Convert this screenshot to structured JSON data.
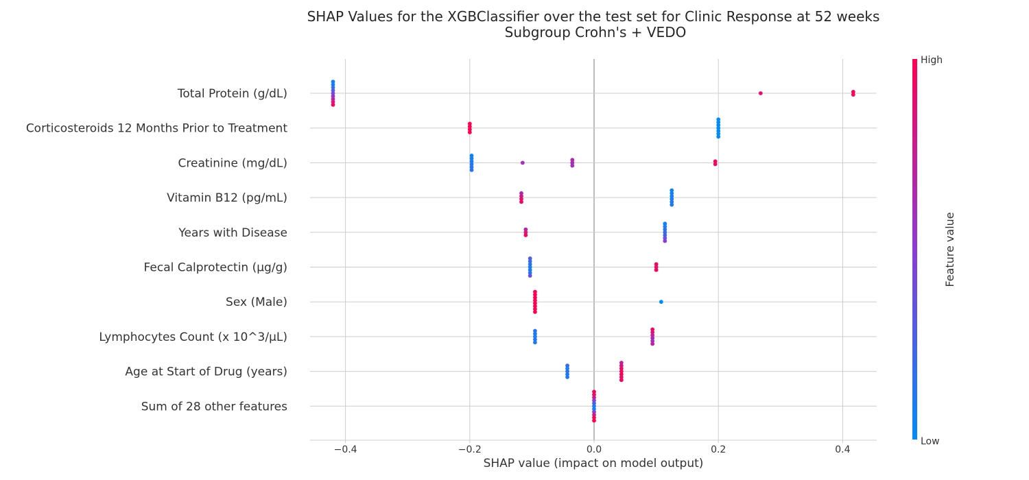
{
  "chart_data": {
    "type": "scatter",
    "title": "SHAP Values for the XGBClassifier over the test set for Clinic Response at 52 weeks",
    "subtitle": "Subgroup Crohn's + VEDO",
    "xlabel": "SHAP value (impact on model output)",
    "xlim": [
      -0.46,
      0.46
    ],
    "xticks": [
      -0.4,
      -0.2,
      0.0,
      0.2,
      0.4
    ],
    "xtick_labels": [
      "−0.4",
      "−0.2",
      "0.0",
      "0.2",
      "0.4"
    ],
    "grid": true,
    "colorbar": {
      "title": "Feature value",
      "high_label": "High",
      "low_label": "Low",
      "low_color": "#008bfb",
      "high_color": "#ff0052"
    },
    "features": [
      {
        "name": "Total Protein (g/dL)",
        "points": [
          {
            "x": -0.42,
            "v": 0.05
          },
          {
            "x": -0.42,
            "v": 0.1
          },
          {
            "x": -0.42,
            "v": 0.15
          },
          {
            "x": -0.42,
            "v": 0.3
          },
          {
            "x": -0.42,
            "v": 0.4
          },
          {
            "x": -0.42,
            "v": 0.55
          },
          {
            "x": -0.42,
            "v": 0.7
          },
          {
            "x": -0.42,
            "v": 0.85
          },
          {
            "x": -0.42,
            "v": 0.95
          },
          {
            "x": 0.268,
            "v": 0.9
          },
          {
            "x": 0.417,
            "v": 1.0
          },
          {
            "x": 0.417,
            "v": 0.95
          }
        ]
      },
      {
        "name": "Corticosteroids 12 Months Prior to Treatment",
        "points": [
          {
            "x": -0.2,
            "v": 1.0
          },
          {
            "x": -0.2,
            "v": 1.0
          },
          {
            "x": -0.2,
            "v": 1.0
          },
          {
            "x": -0.2,
            "v": 1.0
          },
          {
            "x": 0.2,
            "v": 0.0
          },
          {
            "x": 0.2,
            "v": 0.0
          },
          {
            "x": 0.2,
            "v": 0.0
          },
          {
            "x": 0.2,
            "v": 0.0
          },
          {
            "x": 0.2,
            "v": 0.0
          },
          {
            "x": 0.2,
            "v": 0.0
          },
          {
            "x": 0.2,
            "v": 0.0
          }
        ]
      },
      {
        "name": "Creatinine (mg/dL)",
        "points": [
          {
            "x": -0.197,
            "v": 0.05
          },
          {
            "x": -0.197,
            "v": 0.05
          },
          {
            "x": -0.197,
            "v": 0.1
          },
          {
            "x": -0.197,
            "v": 0.1
          },
          {
            "x": -0.197,
            "v": 0.15
          },
          {
            "x": -0.197,
            "v": 0.15
          },
          {
            "x": -0.115,
            "v": 0.6
          },
          {
            "x": -0.035,
            "v": 0.65
          },
          {
            "x": -0.035,
            "v": 0.62
          },
          {
            "x": -0.035,
            "v": 0.6
          },
          {
            "x": 0.195,
            "v": 0.95
          },
          {
            "x": 0.195,
            "v": 0.9
          }
        ]
      },
      {
        "name": "Vitamin B12 (pg/mL)",
        "points": [
          {
            "x": -0.117,
            "v": 0.65
          },
          {
            "x": -0.117,
            "v": 0.8
          },
          {
            "x": -0.117,
            "v": 0.9
          },
          {
            "x": -0.117,
            "v": 0.95
          },
          {
            "x": 0.125,
            "v": 0.05
          },
          {
            "x": 0.125,
            "v": 0.05
          },
          {
            "x": 0.125,
            "v": 0.08
          },
          {
            "x": 0.125,
            "v": 0.08
          },
          {
            "x": 0.125,
            "v": 0.1
          },
          {
            "x": 0.125,
            "v": 0.12
          }
        ]
      },
      {
        "name": "Years with Disease",
        "points": [
          {
            "x": -0.11,
            "v": 0.7
          },
          {
            "x": -0.11,
            "v": 0.85
          },
          {
            "x": -0.11,
            "v": 0.95
          },
          {
            "x": 0.114,
            "v": 0.05
          },
          {
            "x": 0.114,
            "v": 0.1
          },
          {
            "x": 0.114,
            "v": 0.15
          },
          {
            "x": 0.114,
            "v": 0.2
          },
          {
            "x": 0.114,
            "v": 0.25
          },
          {
            "x": 0.114,
            "v": 0.35
          },
          {
            "x": 0.114,
            "v": 0.5
          }
        ]
      },
      {
        "name": "Fecal Calprotectin (µg/g)",
        "points": [
          {
            "x": -0.103,
            "v": 0.3
          },
          {
            "x": -0.103,
            "v": 0.2
          },
          {
            "x": -0.103,
            "v": 0.15
          },
          {
            "x": -0.103,
            "v": 0.1
          },
          {
            "x": -0.103,
            "v": 0.1
          },
          {
            "x": -0.103,
            "v": 0.15
          },
          {
            "x": -0.103,
            "v": 0.35
          },
          {
            "x": 0.1,
            "v": 0.95
          },
          {
            "x": 0.1,
            "v": 0.9
          },
          {
            "x": 0.1,
            "v": 0.95
          }
        ]
      },
      {
        "name": "Sex (Male)",
        "points": [
          {
            "x": -0.095,
            "v": 1.0
          },
          {
            "x": -0.095,
            "v": 1.0
          },
          {
            "x": -0.095,
            "v": 1.0
          },
          {
            "x": -0.095,
            "v": 1.0
          },
          {
            "x": -0.095,
            "v": 1.0
          },
          {
            "x": -0.095,
            "v": 1.0
          },
          {
            "x": -0.095,
            "v": 1.0
          },
          {
            "x": -0.095,
            "v": 1.0
          },
          {
            "x": 0.108,
            "v": 0.0
          }
        ]
      },
      {
        "name": "Lymphocytes Count (x 10^3/µL)",
        "points": [
          {
            "x": -0.095,
            "v": 0.15
          },
          {
            "x": -0.095,
            "v": 0.1
          },
          {
            "x": -0.095,
            "v": 0.1
          },
          {
            "x": -0.095,
            "v": 0.1
          },
          {
            "x": -0.095,
            "v": 0.12
          },
          {
            "x": 0.094,
            "v": 0.95
          },
          {
            "x": 0.094,
            "v": 0.85
          },
          {
            "x": 0.094,
            "v": 0.75
          },
          {
            "x": 0.094,
            "v": 0.65
          },
          {
            "x": 0.094,
            "v": 0.6
          },
          {
            "x": 0.094,
            "v": 0.7
          }
        ]
      },
      {
        "name": "Age at Start of Drug (years)",
        "points": [
          {
            "x": -0.043,
            "v": 0.2
          },
          {
            "x": -0.043,
            "v": 0.1
          },
          {
            "x": -0.043,
            "v": 0.15
          },
          {
            "x": -0.043,
            "v": 0.1
          },
          {
            "x": -0.043,
            "v": 0.12
          },
          {
            "x": 0.044,
            "v": 0.7
          },
          {
            "x": 0.044,
            "v": 0.85
          },
          {
            "x": 0.044,
            "v": 0.9
          },
          {
            "x": 0.044,
            "v": 0.95
          },
          {
            "x": 0.044,
            "v": 1.0
          },
          {
            "x": 0.044,
            "v": 0.9
          },
          {
            "x": 0.044,
            "v": 0.95
          }
        ]
      },
      {
        "name": "Sum of 28 other features",
        "points": [
          {
            "x": 0.0,
            "v": 0.95
          },
          {
            "x": 0.0,
            "v": 0.9
          },
          {
            "x": 0.0,
            "v": 0.8
          },
          {
            "x": 0.0,
            "v": 0.5
          },
          {
            "x": 0.0,
            "v": 0.3
          },
          {
            "x": 0.0,
            "v": 0.1
          },
          {
            "x": 0.0,
            "v": 0.05
          },
          {
            "x": 0.0,
            "v": 0.5
          },
          {
            "x": 0.0,
            "v": 0.8
          },
          {
            "x": 0.0,
            "v": 0.95
          },
          {
            "x": 0.0,
            "v": 1.0
          }
        ]
      }
    ]
  }
}
